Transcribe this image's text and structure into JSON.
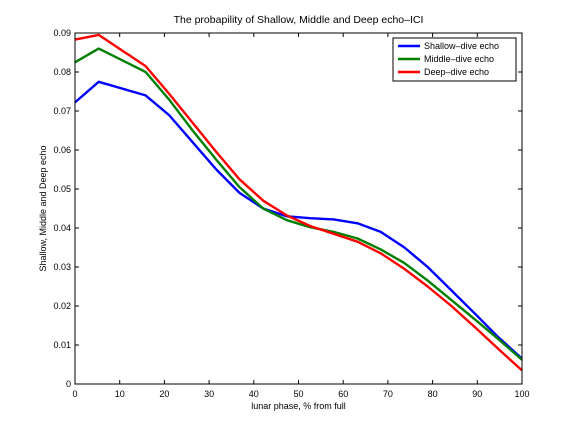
{
  "chart_data": {
    "type": "line",
    "title": "The probapility of Shallow, Middle and Deep echo–ICI",
    "xlabel": "lunar phase, % from full",
    "ylabel": "Shallow, Middle and Deep echo",
    "xlim": [
      0,
      100
    ],
    "ylim": [
      0,
      0.09
    ],
    "xticks": [
      0,
      10,
      20,
      30,
      40,
      50,
      60,
      70,
      80,
      90,
      100
    ],
    "yticks": [
      0,
      0.01,
      0.02,
      0.03,
      0.04,
      0.05,
      0.06,
      0.07,
      0.08,
      0.09
    ],
    "xtick_labels": [
      "0",
      "10",
      "20",
      "30",
      "40",
      "50",
      "60",
      "70",
      "80",
      "90",
      "100"
    ],
    "ytick_labels": [
      "0",
      "0.01",
      "0.02",
      "0.03",
      "0.04",
      "0.05",
      "0.06",
      "0.07",
      "0.08",
      "0.09"
    ],
    "grid": false,
    "legend_position": "top-right",
    "series": [
      {
        "name": "Shallow–dive echo",
        "color": "#0000ff",
        "x": [
          0,
          5.3,
          15.8,
          21,
          26.3,
          31.6,
          36.8,
          42.1,
          47.4,
          52.6,
          57.9,
          63.2,
          68.4,
          73.7,
          78.9,
          84.2,
          89.5,
          94.7,
          100
        ],
        "y": [
          0.0722,
          0.0775,
          0.074,
          0.069,
          0.062,
          0.055,
          0.049,
          0.045,
          0.043,
          0.0425,
          0.0422,
          0.0412,
          0.039,
          0.035,
          0.03,
          0.024,
          0.018,
          0.012,
          0.0065
        ]
      },
      {
        "name": "Middle–dive echo",
        "color": "#008000",
        "x": [
          0,
          5.3,
          15.8,
          21,
          26.3,
          31.6,
          36.8,
          42.1,
          47.4,
          52.6,
          57.9,
          63.2,
          68.4,
          73.7,
          78.9,
          84.2,
          89.5,
          94.7,
          100
        ],
        "y": [
          0.0825,
          0.086,
          0.08,
          0.073,
          0.065,
          0.0575,
          0.0505,
          0.045,
          0.042,
          0.0402,
          0.039,
          0.0373,
          0.0345,
          0.031,
          0.0265,
          0.0215,
          0.0165,
          0.0115,
          0.0062
        ]
      },
      {
        "name": "Deep–dive echo",
        "color": "#ff0000",
        "x": [
          0,
          5.3,
          15.8,
          21,
          26.3,
          31.6,
          36.8,
          42.1,
          47.4,
          52.6,
          57.9,
          63.2,
          68.4,
          73.7,
          78.9,
          84.2,
          89.5,
          94.7,
          100
        ],
        "y": [
          0.0883,
          0.0895,
          0.0815,
          0.0745,
          0.067,
          0.0595,
          0.0525,
          0.047,
          0.0432,
          0.0405,
          0.0385,
          0.0365,
          0.0335,
          0.0295,
          0.025,
          0.02,
          0.0145,
          0.009,
          0.0035
        ]
      }
    ]
  }
}
